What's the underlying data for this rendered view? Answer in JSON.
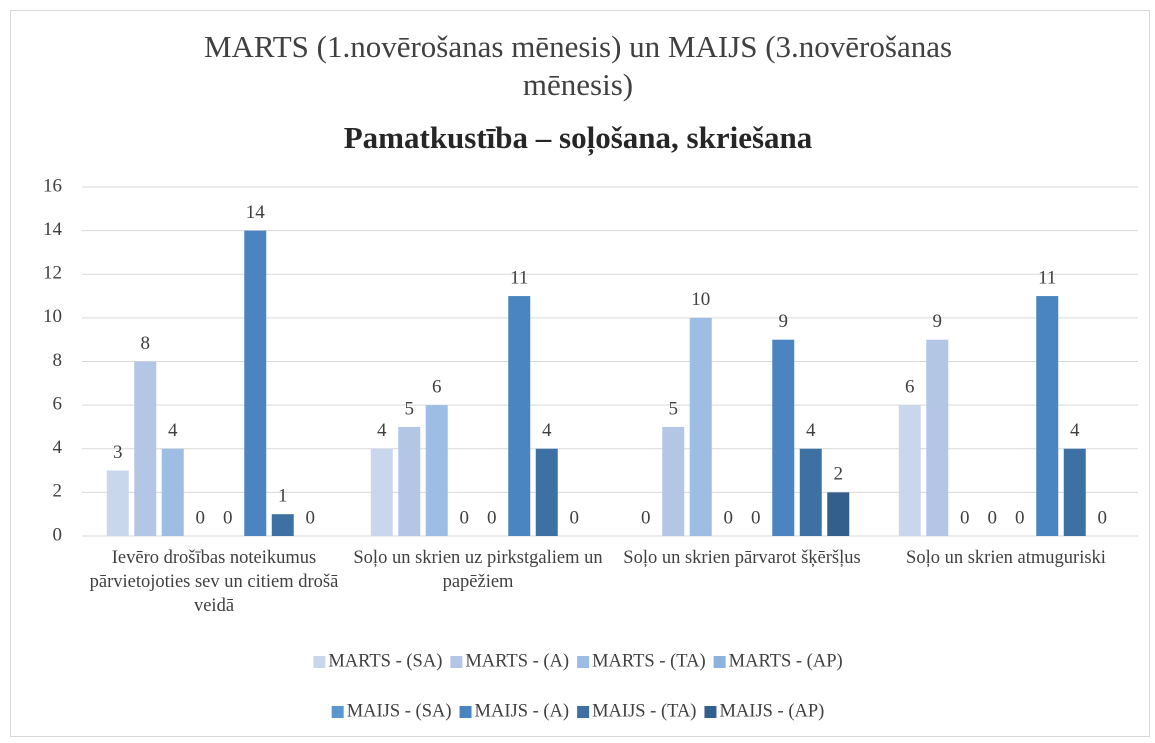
{
  "chart_data": {
    "type": "bar",
    "title": "MARTS (1.novērošanas mēnesis) un MAIJS (3.novērošanas mēnesis)",
    "subtitle": "Pamatkustība – soļošana, skriešana",
    "categories": [
      "Ievēro drošības noteikumus pārvietojoties sev un citiem drošā veidā",
      "Soļo un skrien uz pirkstgaliem un papēžiem",
      "Soļo un skrien pārvarot šķēršļus",
      "Soļo un skrien atmuguriski"
    ],
    "series": [
      {
        "name": "MARTS - (SA)",
        "color": "#c9d7ed",
        "values": [
          3,
          4,
          0,
          6
        ]
      },
      {
        "name": "MARTS - (A)",
        "color": "#b3c6e6",
        "values": [
          8,
          5,
          5,
          9
        ]
      },
      {
        "name": "MARTS - (TA)",
        "color": "#9ebde4",
        "values": [
          4,
          6,
          10,
          0
        ]
      },
      {
        "name": "MARTS - (AP)",
        "color": "#8db2e0",
        "values": [
          0,
          0,
          0,
          0
        ]
      },
      {
        "name": "MAIJS - (SA)",
        "color": "#5a96d0",
        "values": [
          0,
          0,
          0,
          0
        ]
      },
      {
        "name": "MAIJS - (A)",
        "color": "#4a85c1",
        "values": [
          14,
          11,
          9,
          11
        ]
      },
      {
        "name": "MAIJS - (TA)",
        "color": "#3d70a3",
        "values": [
          1,
          4,
          4,
          4
        ]
      },
      {
        "name": "MAIJS - (AP)",
        "color": "#335f8c",
        "values": [
          0,
          0,
          2,
          0
        ]
      }
    ],
    "ylim": [
      0,
      16
    ],
    "yticks": [
      0,
      2,
      4,
      6,
      8,
      10,
      12,
      14,
      16
    ],
    "grid": true,
    "legend": "bottom"
  }
}
